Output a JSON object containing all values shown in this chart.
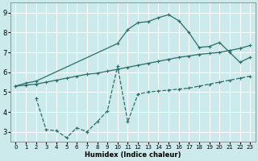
{
  "xlabel": "Humidex (Indice chaleur)",
  "xlim": [
    -0.5,
    23.5
  ],
  "ylim": [
    2.5,
    9.5
  ],
  "xticks": [
    0,
    1,
    2,
    3,
    4,
    5,
    6,
    7,
    8,
    9,
    10,
    11,
    12,
    13,
    14,
    15,
    16,
    17,
    18,
    19,
    20,
    21,
    22,
    23
  ],
  "yticks": [
    3,
    4,
    5,
    6,
    7,
    8,
    9
  ],
  "bg_color": "#cce9ec",
  "line_color": "#2a6e65",
  "grid_color": "#ffffff",
  "curve1_x": [
    0,
    1,
    2,
    10,
    11,
    12,
    13,
    14,
    15,
    16,
    17,
    18,
    19,
    20,
    21,
    22,
    23
  ],
  "curve1_y": [
    5.3,
    5.45,
    5.55,
    7.45,
    8.15,
    8.5,
    8.55,
    8.75,
    8.9,
    8.6,
    8.0,
    7.25,
    7.3,
    7.5,
    7.0,
    6.5,
    6.75
  ],
  "curve2_x": [
    0,
    1,
    2,
    3,
    4,
    5,
    6,
    7,
    8,
    9,
    10,
    11,
    12,
    13,
    14,
    15,
    16,
    17,
    18,
    19,
    20,
    21,
    22,
    23
  ],
  "curve2_y": [
    5.3,
    5.35,
    5.4,
    5.5,
    5.6,
    5.7,
    5.8,
    5.9,
    5.95,
    6.05,
    6.15,
    6.25,
    6.35,
    6.45,
    6.55,
    6.65,
    6.75,
    6.82,
    6.9,
    6.95,
    7.0,
    7.1,
    7.2,
    7.35
  ],
  "curve3_x": [
    2,
    3,
    4,
    5,
    6,
    7,
    8,
    9,
    10,
    11,
    12,
    13,
    14,
    15,
    16,
    17,
    18,
    19,
    20,
    21,
    22,
    23
  ],
  "curve3_y": [
    4.7,
    3.1,
    3.05,
    2.7,
    3.2,
    3.0,
    3.5,
    4.05,
    6.3,
    3.5,
    4.9,
    5.0,
    5.05,
    5.1,
    5.15,
    5.2,
    5.3,
    5.4,
    5.5,
    5.6,
    5.7,
    5.8
  ],
  "title_fontsize": 7,
  "xlabel_fontsize": 6,
  "tick_fontsize": 5
}
